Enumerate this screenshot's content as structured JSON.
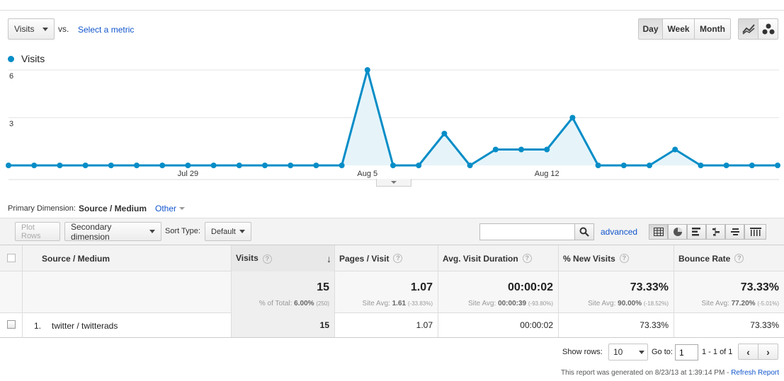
{
  "header": {
    "metric_select": "Visits",
    "vs_label": "vs.",
    "select_metric": "Select a metric",
    "periods": [
      "Day",
      "Week",
      "Month"
    ],
    "active_period": "Day"
  },
  "colors": {
    "series": "#058dc7",
    "fill": "#e6f4fa",
    "link": "#1155cc"
  },
  "chart_data": {
    "type": "area",
    "legend": "Visits",
    "y_ticks": [
      "6",
      "3"
    ],
    "ylim": [
      0,
      6
    ],
    "x_tick_labels": [
      "Jul 29",
      "Aug 5",
      "Aug 12"
    ],
    "x": [
      "Jul 22",
      "Jul 23",
      "Jul 24",
      "Jul 25",
      "Jul 26",
      "Jul 27",
      "Jul 28",
      "Jul 29",
      "Jul 30",
      "Jul 31",
      "Aug 1",
      "Aug 2",
      "Aug 3",
      "Aug 4",
      "Aug 5",
      "Aug 6",
      "Aug 7",
      "Aug 8",
      "Aug 9",
      "Aug 10",
      "Aug 11",
      "Aug 12",
      "Aug 13",
      "Aug 14",
      "Aug 15",
      "Aug 16",
      "Aug 17",
      "Aug 18",
      "Aug 19",
      "Aug 20",
      "Aug 21"
    ],
    "series": [
      {
        "name": "Visits",
        "values": [
          0,
          0,
          0,
          0,
          0,
          0,
          0,
          0,
          0,
          0,
          0,
          0,
          0,
          0,
          6,
          0,
          0,
          2,
          0,
          1,
          1,
          1,
          3,
          0,
          0,
          0,
          1,
          0,
          0,
          0,
          0
        ]
      }
    ],
    "grid": true
  },
  "dimension": {
    "label": "Primary Dimension:",
    "current": "Source / Medium",
    "other": "Other"
  },
  "toolbar": {
    "plot_rows": "Plot Rows",
    "secondary_dimension": "Secondary dimension",
    "sort_type_label": "Sort Type:",
    "sort_type_value": "Default",
    "search_value": "",
    "advanced": "advanced"
  },
  "table": {
    "headers": [
      "Source / Medium",
      "Visits",
      "Pages / Visit",
      "Avg. Visit Duration",
      "% New Visits",
      "Bounce Rate"
    ],
    "totals": {
      "visits": "15",
      "visits_sub_label": "% of Total:",
      "visits_sub_value": "6.00%",
      "visits_sub_extra": "(250)",
      "pages": "1.07",
      "pages_sub_label": "Site Avg:",
      "pages_sub_value": "1.61",
      "pages_sub_extra": "(-33.83%)",
      "duration": "00:00:02",
      "duration_sub_label": "Site Avg:",
      "duration_sub_value": "00:00:39",
      "duration_sub_extra": "(-93.80%)",
      "new_visits": "73.33%",
      "new_sub_label": "Site Avg:",
      "new_sub_value": "90.00%",
      "new_sub_extra": "(-18.52%)",
      "bounce": "73.33%",
      "bounce_sub_label": "Site Avg:",
      "bounce_sub_value": "77.20%",
      "bounce_sub_extra": "(-5.01%)"
    },
    "rows": [
      {
        "index": "1.",
        "source": "twitter / twitterads",
        "visits": "15",
        "pages": "1.07",
        "duration": "00:00:02",
        "new_visits": "73.33%",
        "bounce": "73.33%"
      }
    ]
  },
  "pagination": {
    "show_rows_label": "Show rows:",
    "show_rows_value": "10",
    "goto_label": "Go to:",
    "goto_value": "1",
    "range": "1 - 1 of 1"
  },
  "footer": {
    "generated_text": "This report was generated on 8/23/13 at 1:39:14 PM -",
    "refresh": "Refresh Report"
  }
}
